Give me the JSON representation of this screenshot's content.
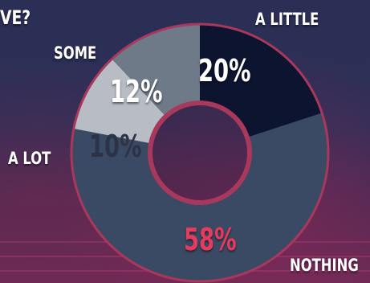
{
  "question_fragment": "VE?",
  "chart_data": {
    "type": "pie",
    "variant": "donut",
    "categories": [
      "A LITTLE",
      "NOTHING",
      "A LOT",
      "SOME"
    ],
    "values": [
      20,
      58,
      10,
      12
    ],
    "value_labels": [
      "20%",
      "58%",
      "10%",
      "12%"
    ],
    "colors": [
      "#0d1430",
      "#3b4a64",
      "#b8bcc4",
      "#6f7a88"
    ],
    "value_label_colors": [
      "#ffffff",
      "#e83a5e",
      "#2c3346",
      "#ffffff"
    ],
    "ring_border_color": "#a8385c"
  }
}
